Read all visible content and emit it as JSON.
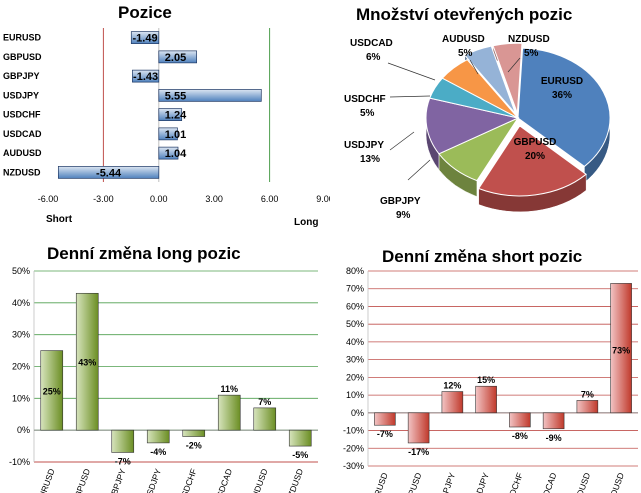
{
  "chart_data": [
    {
      "type": "bar",
      "orientation": "horizontal",
      "title": "Pozice",
      "categories": [
        "EURUSD",
        "GBPUSD",
        "GBPJPY",
        "USDJPY",
        "USDCHF",
        "USDCAD",
        "AUDUSD",
        "NZDUSD"
      ],
      "values": [
        -1.49,
        2.05,
        -1.43,
        5.55,
        1.24,
        1.01,
        1.04,
        -5.44
      ],
      "value_labels": [
        "-1.49",
        "2.05",
        "-1.43",
        "5.55",
        "1.24",
        "1.01",
        "1.04",
        "-5.44"
      ],
      "xlim": [
        -6,
        9
      ],
      "xticks": [
        "-6.00",
        "-3.00",
        "0.00",
        "3.00",
        "6.00",
        "9.00"
      ],
      "xlabel_left": "Short",
      "xlabel_right": "Long",
      "colors": {
        "bar": "#4f81bd",
        "bar_light": "#dce6f2",
        "short_line": "#c0504d",
        "long_line": "#4f9f4f"
      }
    },
    {
      "type": "pie",
      "title": "Množství otevřených pozic",
      "slices": [
        {
          "label": "EURUSD",
          "value": 36,
          "text": "36%",
          "color": "#4f81bd"
        },
        {
          "label": "GBPUSD",
          "value": 20,
          "text": "20%",
          "color": "#c0504d"
        },
        {
          "label": "GBPJPY",
          "value": 9,
          "text": "9%",
          "color": "#9bbb59"
        },
        {
          "label": "USDJPY",
          "value": 13,
          "text": "13%",
          "color": "#8064a2"
        },
        {
          "label": "USDCHF",
          "value": 5,
          "text": "5%",
          "color": "#4bacc6"
        },
        {
          "label": "USDCAD",
          "value": 6,
          "text": "6%",
          "color": "#f79646"
        },
        {
          "label": "AUDUSD",
          "value": 5,
          "text": "5%",
          "color": "#95b3d7"
        },
        {
          "label": "NZDUSD",
          "value": 5,
          "text": "5%",
          "color": "#d99694"
        }
      ]
    },
    {
      "type": "bar",
      "title": "Denní změna long pozic",
      "categories": [
        "EURUSD",
        "GBPUSD",
        "GBPJPY",
        "USDJPY",
        "USDCHF",
        "USDCAD",
        "AUDUSD",
        "NZDUSD"
      ],
      "values": [
        25,
        43,
        -7,
        -4,
        -2,
        11,
        7,
        -5
      ],
      "value_labels": [
        "25%",
        "43%",
        "-7%",
        "-4%",
        "-2%",
        "11%",
        "7%",
        "-5%"
      ],
      "ylim": [
        -10,
        50
      ],
      "yticks": [
        "-10%",
        "0%",
        "10%",
        "20%",
        "30%",
        "40%",
        "50%"
      ],
      "colors": {
        "bar": "#6b8e23",
        "bar_light": "#d7e4bd",
        "grid": "#4f9f4f",
        "axis_bottom": "#c0504d"
      }
    },
    {
      "type": "bar",
      "title": "Denní změna short pozic",
      "categories": [
        "EURUSD",
        "GBPUSD",
        "GBPJPY",
        "USDJPY",
        "USDCHF",
        "USDCAD",
        "AUDUSD",
        "NZDUSD"
      ],
      "values": [
        -7,
        -17,
        12,
        15,
        -8,
        -9,
        7,
        73
      ],
      "value_labels": [
        "-7%",
        "-17%",
        "12%",
        "15%",
        "-8%",
        "-9%",
        "7%",
        "73%"
      ],
      "ylim": [
        -30,
        80
      ],
      "yticks": [
        "-30%",
        "-20%",
        "-10%",
        "0%",
        "10%",
        "20%",
        "30%",
        "40%",
        "50%",
        "60%",
        "70%",
        "80%"
      ],
      "colors": {
        "bar": "#c0392b",
        "bar_light": "#f2c4c4",
        "grid": "#c0504d"
      }
    }
  ]
}
